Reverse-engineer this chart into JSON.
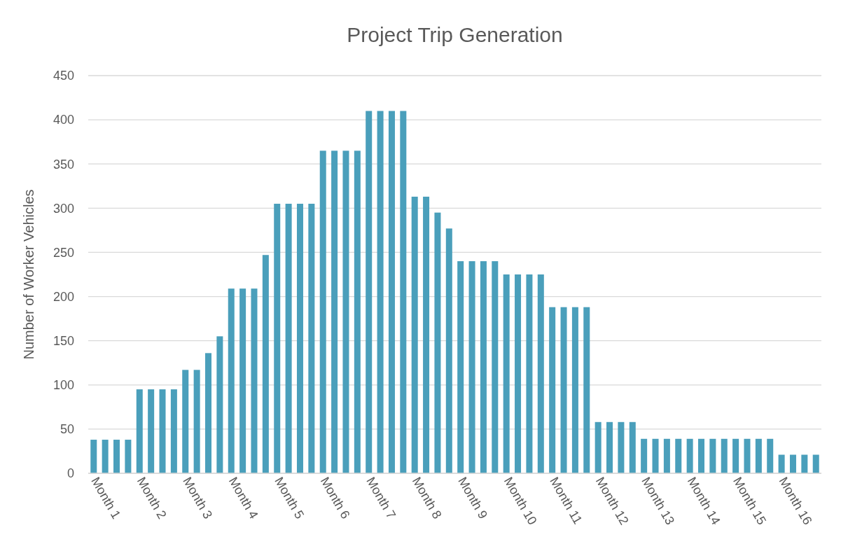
{
  "chart_data": {
    "type": "bar",
    "title": "Project Trip Generation",
    "ylabel": "Number of Worker Vehicles",
    "categories": [
      "Month 1",
      null,
      null,
      null,
      "Month 2",
      null,
      null,
      null,
      "Month 3",
      null,
      null,
      null,
      "Month 4",
      null,
      null,
      null,
      "Month 5",
      null,
      null,
      null,
      "Month 6",
      null,
      null,
      null,
      "Month 7",
      null,
      null,
      null,
      "Month 8",
      null,
      null,
      null,
      "Month 9",
      null,
      null,
      null,
      "Month 10",
      null,
      null,
      null,
      "Month 11",
      null,
      null,
      null,
      "Month 12",
      null,
      null,
      null,
      "Month 13",
      null,
      null,
      null,
      "Month 14",
      null,
      null,
      null,
      "Month 15",
      null,
      null,
      null,
      "Month 16",
      null,
      null,
      null
    ],
    "values": [
      38,
      38,
      38,
      38,
      95,
      95,
      95,
      95,
      117,
      117,
      136,
      155,
      209,
      209,
      209,
      247,
      305,
      305,
      305,
      305,
      365,
      365,
      365,
      365,
      410,
      410,
      410,
      410,
      313,
      313,
      295,
      277,
      240,
      240,
      240,
      240,
      225,
      225,
      225,
      225,
      188,
      188,
      188,
      188,
      58,
      58,
      58,
      58,
      39,
      39,
      39,
      39,
      39,
      39,
      39,
      39,
      39,
      39,
      39,
      39,
      21,
      21,
      21,
      21
    ],
    "color": "#4a9fbb",
    "ylim": [
      0,
      450
    ],
    "yticks": [
      0,
      50,
      100,
      150,
      200,
      250,
      300,
      350,
      400,
      450
    ],
    "grid": "y"
  }
}
